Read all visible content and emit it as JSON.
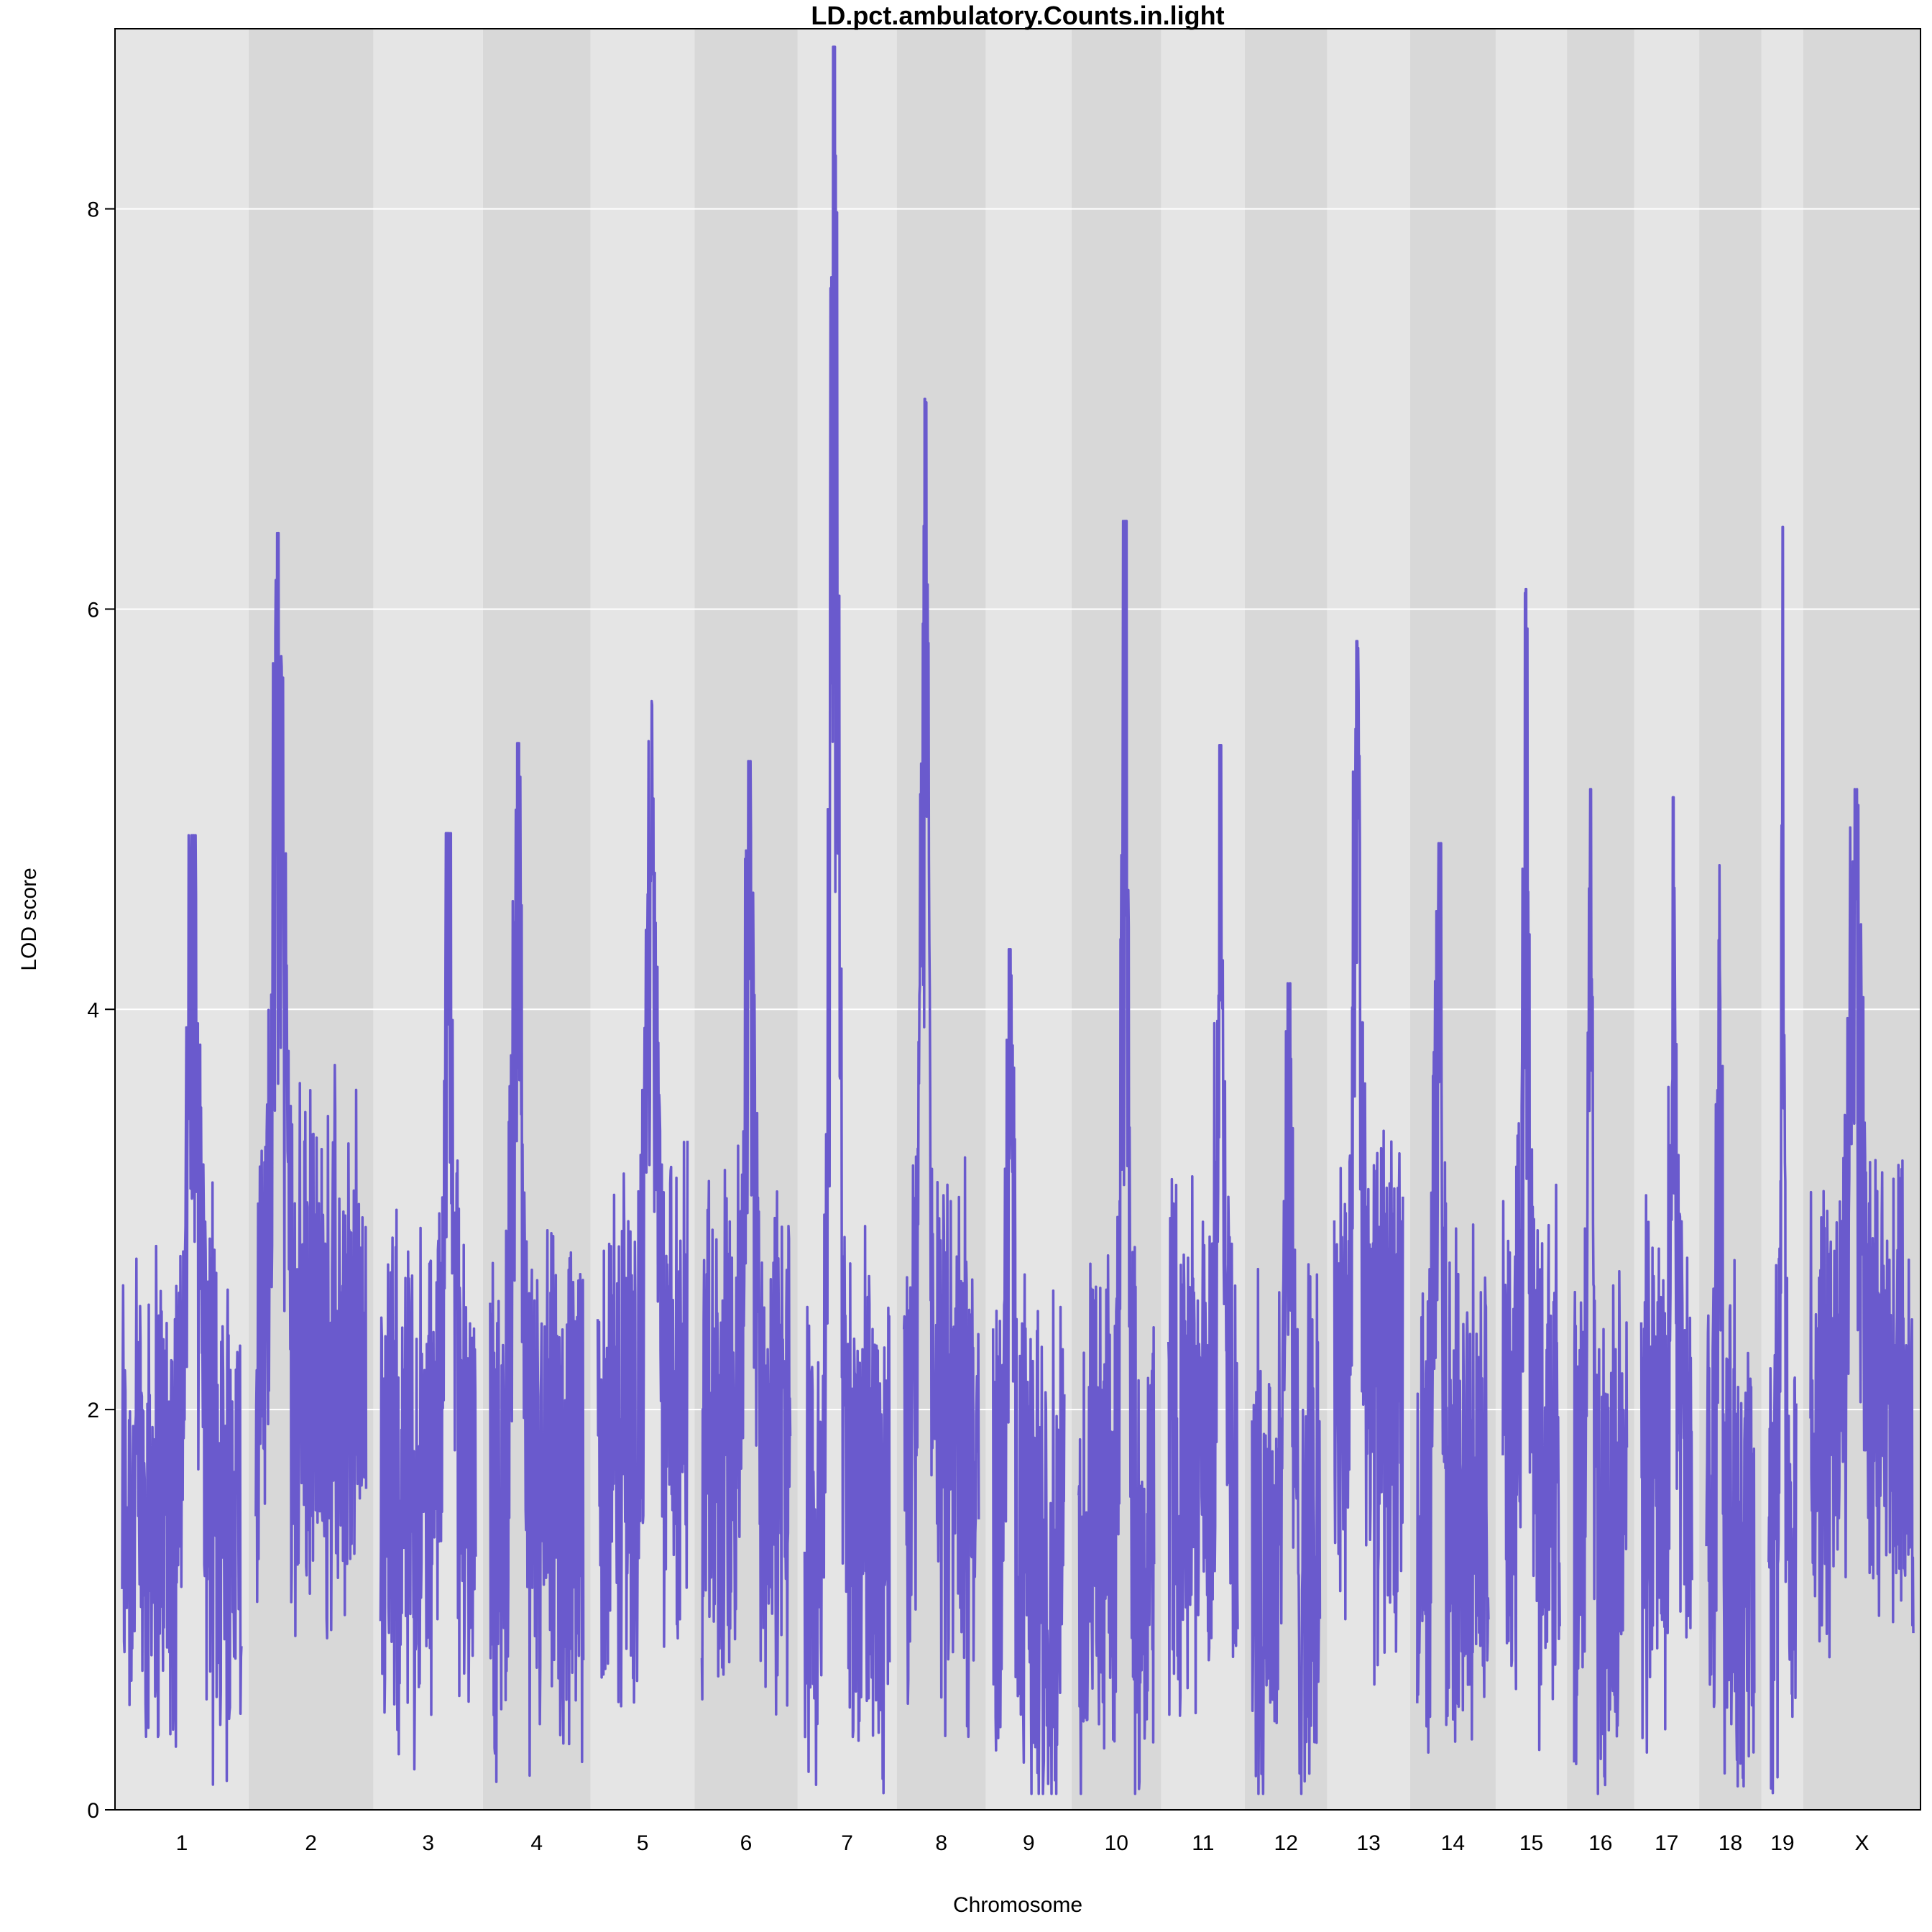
{
  "chart_data": {
    "type": "line",
    "title": "LD.pct.ambulatory.Counts.in.light",
    "xlabel": "Chromosome",
    "ylabel": "LOD score",
    "ylim": [
      0,
      8.9
    ],
    "yticks": [
      0,
      2,
      4,
      6,
      8
    ],
    "grid": true,
    "series_color": "#6a5acd",
    "band_colors": [
      "#e5e5e5",
      "#d8d8d8"
    ],
    "chromosomes": [
      {
        "label": "1",
        "length_mb": 195,
        "peak": 4.87,
        "base": 1.6
      },
      {
        "label": "2",
        "length_mb": 182,
        "peak": 6.38,
        "base": 2.2
      },
      {
        "label": "3",
        "length_mb": 160,
        "peak": 4.88,
        "base": 1.6
      },
      {
        "label": "4",
        "length_mb": 157,
        "peak": 5.33,
        "base": 1.5
      },
      {
        "label": "5",
        "length_mb": 152,
        "peak": 5.54,
        "base": 1.9
      },
      {
        "label": "6",
        "length_mb": 150,
        "peak": 5.24,
        "base": 1.8
      },
      {
        "label": "7",
        "length_mb": 145,
        "peak": 8.81,
        "base": 1.5
      },
      {
        "label": "8",
        "length_mb": 130,
        "peak": 7.05,
        "base": 1.8
      },
      {
        "label": "9",
        "length_mb": 125,
        "peak": 4.3,
        "base": 1.3
      },
      {
        "label": "10",
        "length_mb": 131,
        "peak": 6.44,
        "base": 1.3
      },
      {
        "label": "11",
        "length_mb": 122,
        "peak": 5.32,
        "base": 1.8
      },
      {
        "label": "12",
        "length_mb": 120,
        "peak": 4.13,
        "base": 1.3
      },
      {
        "label": "13",
        "length_mb": 121,
        "peak": 5.84,
        "base": 2.1
      },
      {
        "label": "14",
        "length_mb": 125,
        "peak": 4.83,
        "base": 1.5
      },
      {
        "label": "15",
        "length_mb": 104,
        "peak": 6.1,
        "base": 1.8
      },
      {
        "label": "16",
        "length_mb": 98,
        "peak": 5.1,
        "base": 1.3
      },
      {
        "label": "17",
        "length_mb": 95,
        "peak": 5.06,
        "base": 1.7
      },
      {
        "label": "18",
        "length_mb": 91,
        "peak": 4.72,
        "base": 1.3
      },
      {
        "label": "19",
        "length_mb": 61,
        "peak": 6.41,
        "base": 1.3
      },
      {
        "label": "X",
        "length_mb": 171,
        "peak": 5.1,
        "base": 2.0
      }
    ]
  }
}
